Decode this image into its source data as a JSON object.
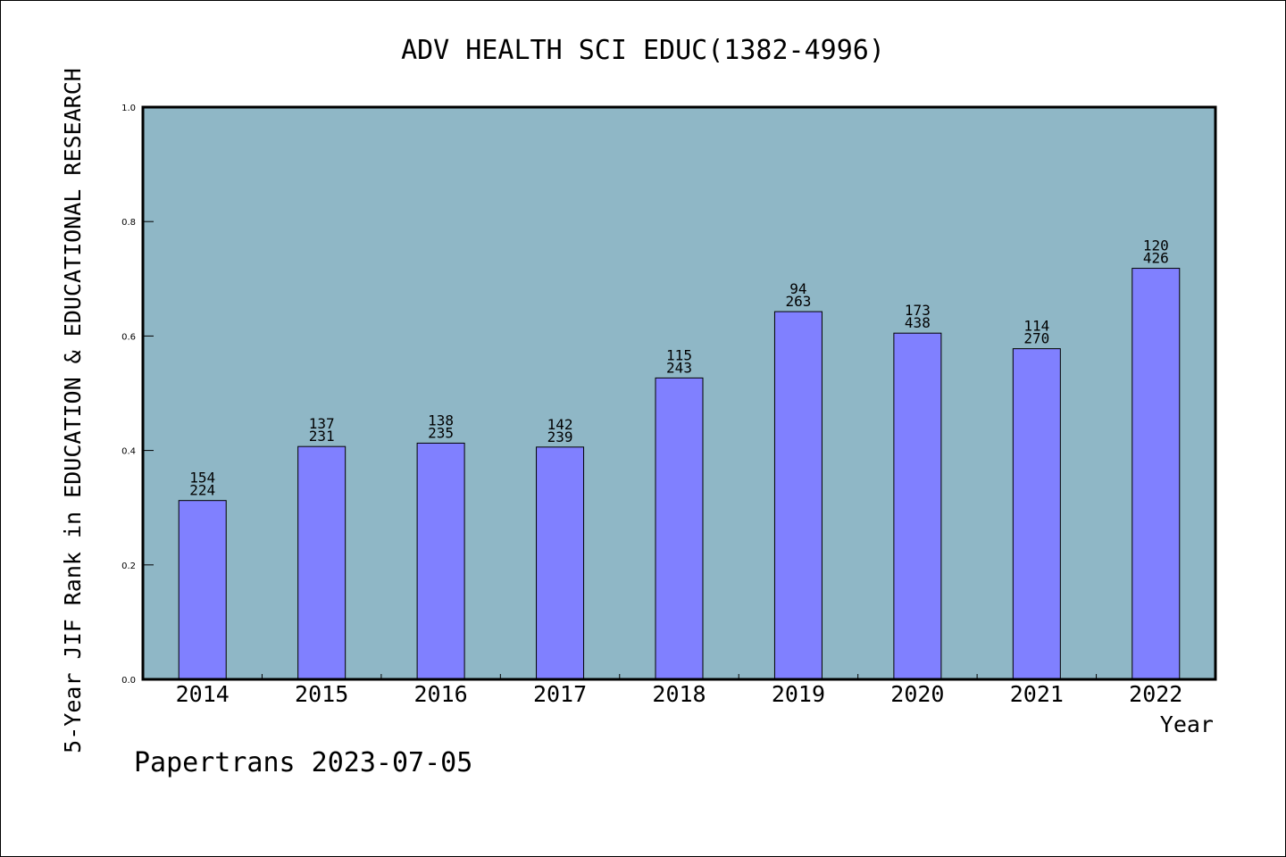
{
  "chart_data": {
    "type": "bar",
    "title": "ADV HEALTH SCI EDUC(1382-4996)",
    "xlabel": "Year",
    "ylabel": "5-Year JIF Rank in EDUCATION & EDUCATIONAL RESEARCH",
    "ylim": [
      0,
      1.0
    ],
    "yticks": [
      "0.0",
      "0.2",
      "0.4",
      "0.6",
      "0.8",
      "1.0"
    ],
    "categories": [
      "2014",
      "2015",
      "2016",
      "2017",
      "2018",
      "2019",
      "2020",
      "2021",
      "2022"
    ],
    "values": [
      0.3125,
      0.4069,
      0.4128,
      0.4059,
      0.5267,
      0.6426,
      0.605,
      0.5778,
      0.7183
    ],
    "rank": [
      154,
      137,
      138,
      142,
      115,
      94,
      173,
      114,
      120
    ],
    "total": [
      224,
      231,
      235,
      239,
      243,
      263,
      438,
      270,
      426
    ],
    "grid": false,
    "colors": {
      "plot_bg": "#8fb7c6",
      "bar": "#8080ff",
      "bar_edge": "#000000"
    }
  },
  "footer": {
    "text": "Papertrans 2023-07-05"
  }
}
